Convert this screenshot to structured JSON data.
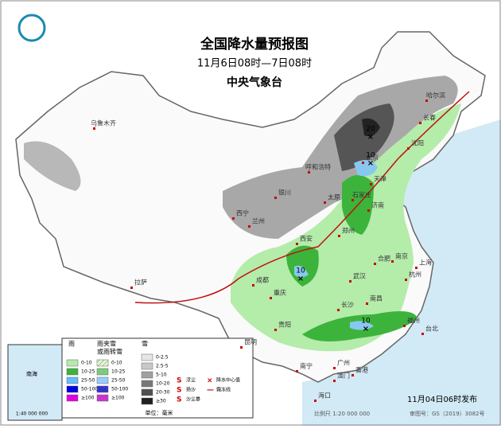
{
  "header": {
    "title": "全国降水量预报图",
    "period": "11月6日08时—7日08时",
    "issuer": "中央气象台"
  },
  "cities": [
    "乌鲁木齐",
    "哈尔滨",
    "长春",
    "沈阳",
    "呼和浩特",
    "北京",
    "天津",
    "石家庄",
    "太原",
    "济南",
    "银川",
    "兰州",
    "西宁",
    "西安",
    "郑州",
    "合肥",
    "南京",
    "上海",
    "杭州",
    "武汉",
    "成都",
    "重庆",
    "拉萨",
    "长沙",
    "南昌",
    "福州",
    "台北",
    "贵阳",
    "昆明",
    "南宁",
    "广州",
    "香港",
    "澳门",
    "海口"
  ],
  "centers": [
    "20",
    "10",
    "10",
    "10"
  ],
  "legend": {
    "rain": {
      "title": "雨",
      "items": [
        "0-10",
        "10-25",
        "25-50",
        "50-100",
        "≥100"
      ]
    },
    "sleet": {
      "title": "雨夹雪",
      "subtitle": "或雨转雪",
      "items": [
        "0-10",
        "10-25",
        "25-50",
        "50-100",
        "≥100"
      ]
    },
    "snow": {
      "title": "雪",
      "items": [
        "0-2.5",
        "2.5-5",
        "5-10",
        "10-20",
        "20-30",
        "≥30"
      ]
    },
    "symbols": [
      "浮尘",
      "扬沙",
      "沙尘暴",
      "降水中心值",
      "霜冻线"
    ],
    "unit": "单位：毫米"
  },
  "inset": {
    "label": "南海",
    "scale": "1:40 000 000"
  },
  "footer": {
    "issued": "11月04日06时发布",
    "scale": "比例尺 1:20 000 000",
    "approval": "审图号：GS（2019）3082号"
  }
}
